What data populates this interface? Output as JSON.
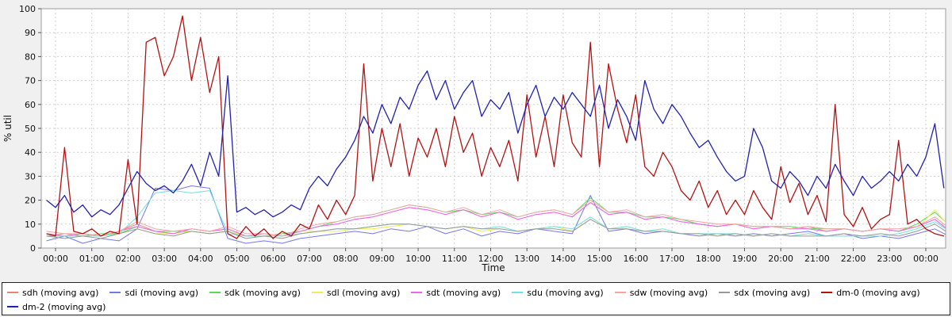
{
  "chart": {
    "ylabel": "% util",
    "xlabel": "Time",
    "background": "#f0f0f0",
    "plot_background": "#ffffff",
    "grid_color": "#cfcfcf",
    "axis_color": "#9b9b9b",
    "tick_color": "#555555",
    "text_color": "#111111",
    "legend_border_color": "#222222",
    "legend_background": "#ffffff"
  },
  "chart_data": {
    "type": "line",
    "title": "",
    "xlabel": "Time",
    "ylabel": "% util",
    "ylim": [
      0,
      100
    ],
    "xlim_hours": [
      -0.39,
      24.55
    ],
    "grid": true,
    "legend_position": "bottom",
    "y_ticks": [
      0,
      10,
      20,
      30,
      40,
      50,
      60,
      70,
      80,
      90,
      100
    ],
    "x_tick_hours": [
      0,
      1,
      2,
      3,
      4,
      5,
      6,
      7,
      8,
      9,
      10,
      11,
      12,
      13,
      14,
      15,
      16,
      17,
      18,
      19,
      20,
      21,
      22,
      23,
      24
    ],
    "x_tick_labels": [
      "00:00",
      "01:00",
      "02:00",
      "03:00",
      "04:00",
      "05:00",
      "06:00",
      "07:00",
      "08:00",
      "09:00",
      "10:00",
      "11:00",
      "12:00",
      "13:00",
      "14:00",
      "15:00",
      "16:00",
      "17:00",
      "18:00",
      "19:00",
      "20:00",
      "21:00",
      "22:00",
      "23:00",
      "00:00"
    ],
    "series": [
      {
        "name": "sdh (moving avg)",
        "color": "#f67b7b",
        "x_start": -0.25,
        "x_step": 0.5,
        "values": [
          6,
          5,
          6,
          5,
          7,
          10,
          7,
          6,
          8,
          7,
          8,
          5,
          6,
          5,
          7,
          9,
          10,
          12,
          13,
          15,
          17,
          16,
          14,
          16,
          13,
          15,
          12,
          14,
          15,
          13,
          19,
          14,
          15,
          12,
          13,
          11,
          10,
          9,
          10,
          8,
          9,
          8,
          9,
          7,
          8,
          7,
          8,
          7,
          9,
          12,
          6
        ]
      },
      {
        "name": "sdi (moving avg)",
        "color": "#7777ee",
        "x_start": -0.25,
        "x_step": 0.5,
        "values": [
          3,
          5,
          2,
          4,
          3,
          8,
          25,
          24,
          26,
          25,
          4,
          2,
          3,
          2,
          4,
          5,
          6,
          7,
          6,
          8,
          7,
          9,
          6,
          8,
          5,
          7,
          6,
          8,
          7,
          6,
          22,
          7,
          8,
          6,
          7,
          6,
          5,
          6,
          5,
          6,
          5,
          6,
          7,
          5,
          6,
          4,
          5,
          4,
          6,
          8,
          4
        ]
      },
      {
        "name": "sdk (moving avg)",
        "color": "#55dd55",
        "x_start": -0.25,
        "x_step": 0.5,
        "values": [
          5,
          6,
          5,
          6,
          6,
          9,
          7,
          7,
          7,
          6,
          7,
          5,
          5,
          6,
          7,
          9,
          11,
          13,
          14,
          16,
          18,
          17,
          15,
          16,
          14,
          15,
          13,
          15,
          16,
          14,
          21,
          15,
          15,
          13,
          13,
          12,
          10,
          9,
          10,
          9,
          9,
          9,
          8,
          8,
          8,
          7,
          8,
          7,
          10,
          15,
          8
        ]
      },
      {
        "name": "sdl (moving avg)",
        "color": "#eeee55",
        "x_start": -0.25,
        "x_step": 0.5,
        "values": [
          5,
          5,
          6,
          5,
          6,
          8,
          6,
          6,
          7,
          6,
          7,
          5,
          6,
          5,
          7,
          7,
          7,
          8,
          8,
          9,
          10,
          9,
          8,
          9,
          7,
          8,
          7,
          8,
          9,
          7,
          12,
          8,
          9,
          7,
          8,
          6,
          6,
          5,
          6,
          5,
          6,
          5,
          6,
          5,
          5,
          5,
          5,
          6,
          8,
          16,
          7
        ]
      },
      {
        "name": "sdt (moving avg)",
        "color": "#ee66ee",
        "x_start": -0.25,
        "x_step": 0.5,
        "values": [
          6,
          5,
          6,
          5,
          7,
          9,
          7,
          6,
          8,
          7,
          8,
          5,
          6,
          5,
          7,
          9,
          10,
          12,
          13,
          15,
          17,
          16,
          14,
          16,
          13,
          15,
          12,
          14,
          15,
          13,
          19,
          14,
          15,
          12,
          13,
          11,
          10,
          9,
          10,
          8,
          9,
          8,
          8,
          7,
          8,
          7,
          8,
          7,
          9,
          12,
          6
        ]
      },
      {
        "name": "sdu (moving avg)",
        "color": "#6fe3e3",
        "x_start": -0.25,
        "x_step": 0.5,
        "values": [
          5,
          5,
          5,
          5,
          6,
          13,
          23,
          24,
          23,
          24,
          6,
          5,
          5,
          5,
          6,
          7,
          8,
          8,
          9,
          10,
          10,
          9,
          8,
          9,
          8,
          9,
          7,
          8,
          9,
          8,
          13,
          8,
          9,
          7,
          8,
          6,
          6,
          6,
          6,
          5,
          6,
          5,
          6,
          5,
          5,
          5,
          5,
          6,
          8,
          11,
          6
        ]
      },
      {
        "name": "sdw (moving avg)",
        "color": "#f5a3a3",
        "x_start": -0.25,
        "x_step": 0.5,
        "values": [
          7,
          6,
          6,
          5,
          7,
          11,
          8,
          7,
          8,
          7,
          9,
          6,
          6,
          5,
          8,
          10,
          11,
          13,
          14,
          16,
          18,
          17,
          15,
          17,
          14,
          16,
          13,
          15,
          16,
          14,
          20,
          15,
          16,
          13,
          14,
          12,
          11,
          10,
          10,
          9,
          9,
          8,
          9,
          8,
          8,
          7,
          8,
          8,
          9,
          13,
          7
        ]
      },
      {
        "name": "sdx (moving avg)",
        "color": "#999999",
        "x_start": -0.25,
        "x_step": 0.5,
        "values": [
          5,
          4,
          5,
          4,
          6,
          8,
          6,
          5,
          7,
          6,
          7,
          4,
          5,
          4,
          6,
          7,
          8,
          8,
          9,
          10,
          10,
          9,
          8,
          9,
          8,
          8,
          7,
          8,
          8,
          7,
          12,
          8,
          8,
          7,
          7,
          6,
          6,
          5,
          6,
          5,
          6,
          5,
          5,
          5,
          6,
          5,
          6,
          5,
          7,
          10,
          5
        ]
      },
      {
        "name": "dm-0 (moving avg)",
        "color": "#b31212",
        "x_start": -0.25,
        "x_step": 0.25,
        "emphasis": true,
        "values": [
          6,
          5,
          42,
          7,
          6,
          8,
          5,
          7,
          6,
          37,
          10,
          86,
          88,
          72,
          80,
          97,
          70,
          88,
          65,
          80,
          6,
          4,
          9,
          5,
          8,
          4,
          7,
          5,
          10,
          8,
          18,
          12,
          20,
          14,
          22,
          77,
          28,
          50,
          34,
          52,
          30,
          46,
          38,
          50,
          34,
          55,
          40,
          48,
          30,
          42,
          34,
          45,
          28,
          64,
          38,
          55,
          34,
          64,
          44,
          38,
          86,
          34,
          77,
          58,
          44,
          64,
          34,
          30,
          40,
          34,
          24,
          20,
          28,
          17,
          24,
          14,
          20,
          14,
          24,
          17,
          12,
          34,
          19,
          27,
          14,
          22,
          11,
          60,
          14,
          9,
          17,
          8,
          12,
          14,
          45,
          10,
          12,
          8,
          6,
          5
        ]
      },
      {
        "name": "dm-2 (moving avg)",
        "color": "#2222b2",
        "x_start": -0.25,
        "x_step": 0.25,
        "emphasis": true,
        "values": [
          20,
          17,
          22,
          15,
          18,
          13,
          16,
          14,
          18,
          25,
          32,
          27,
          24,
          26,
          23,
          28,
          35,
          26,
          40,
          30,
          72,
          15,
          17,
          14,
          16,
          13,
          15,
          18,
          16,
          25,
          30,
          26,
          33,
          38,
          45,
          55,
          48,
          60,
          52,
          63,
          58,
          68,
          74,
          62,
          70,
          58,
          65,
          70,
          55,
          62,
          58,
          65,
          48,
          60,
          68,
          55,
          63,
          58,
          65,
          60,
          55,
          68,
          50,
          62,
          55,
          45,
          70,
          58,
          52,
          60,
          55,
          48,
          42,
          45,
          38,
          32,
          28,
          30,
          50,
          42,
          28,
          25,
          32,
          28,
          22,
          30,
          25,
          35,
          28,
          22,
          30,
          25,
          28,
          32,
          28,
          35,
          30,
          38,
          52,
          25
        ]
      }
    ]
  }
}
